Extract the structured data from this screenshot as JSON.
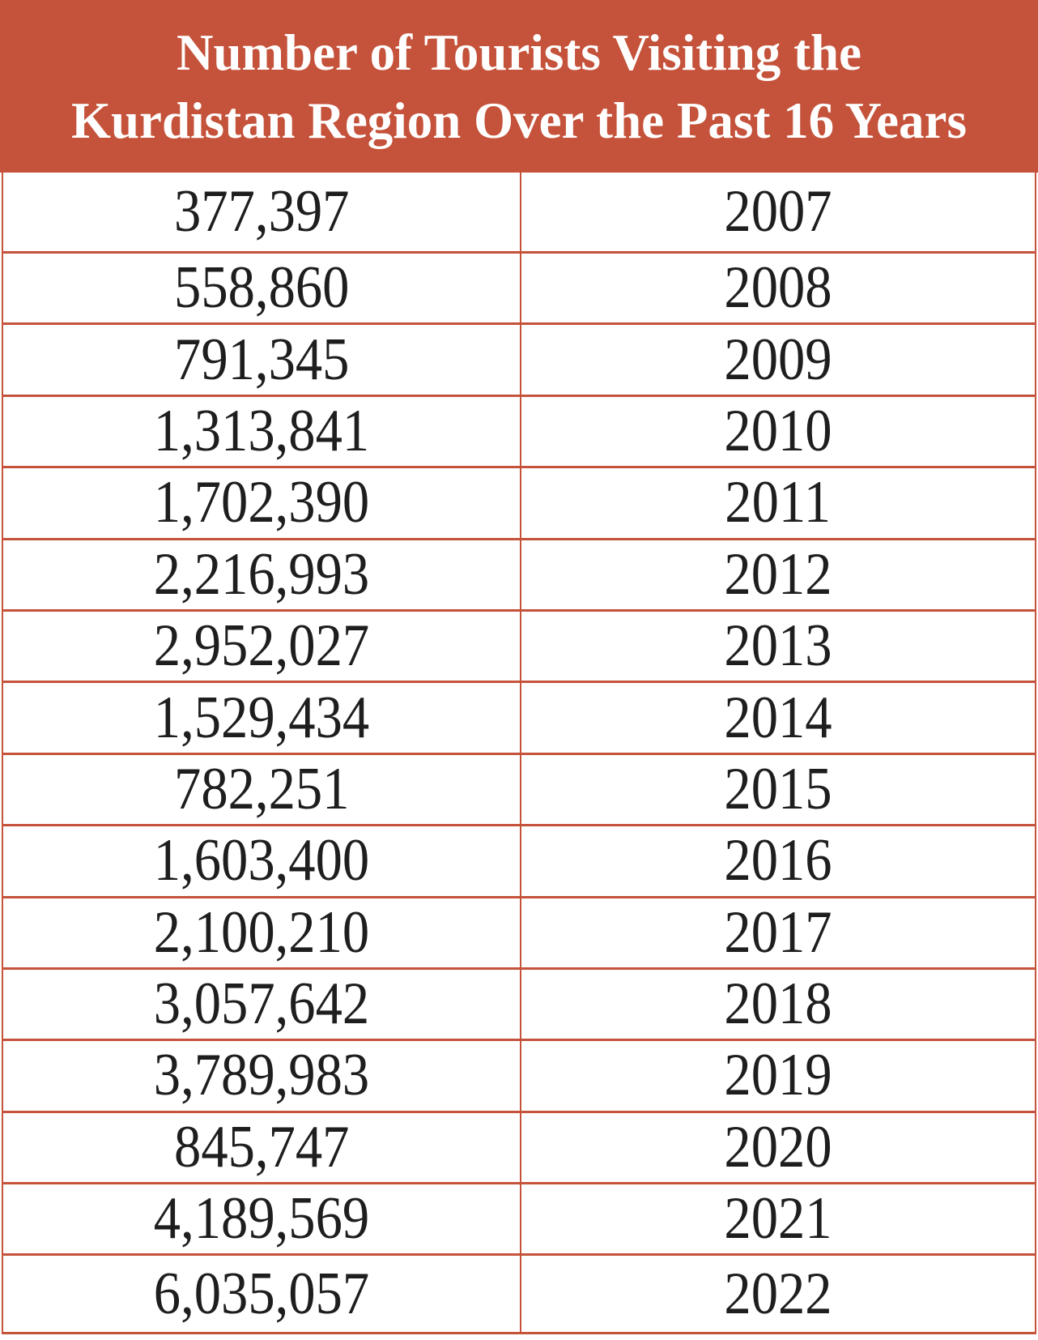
{
  "title": {
    "line1": "Number of Tourists Visiting the",
    "line2": "Kurdistan Region Over the Past 16 Years"
  },
  "colors": {
    "accent": "#c5523a",
    "text": "#1e1e1e"
  },
  "rows": [
    {
      "tourists": "377,397",
      "year": "2007"
    },
    {
      "tourists": "558,860",
      "year": "2008"
    },
    {
      "tourists": "791,345",
      "year": "2009"
    },
    {
      "tourists": "1,313,841",
      "year": "2010"
    },
    {
      "tourists": "1,702,390",
      "year": "2011"
    },
    {
      "tourists": "2,216,993",
      "year": "2012"
    },
    {
      "tourists": "2,952,027",
      "year": "2013"
    },
    {
      "tourists": "1,529,434",
      "year": "2014"
    },
    {
      "tourists": "782,251",
      "year": "2015"
    },
    {
      "tourists": "1,603,400",
      "year": "2016"
    },
    {
      "tourists": "2,100,210",
      "year": "2017"
    },
    {
      "tourists": "3,057,642",
      "year": "2018"
    },
    {
      "tourists": "3,789,983",
      "year": "2019"
    },
    {
      "tourists": "845,747",
      "year": "2020"
    },
    {
      "tourists": "4,189,569",
      "year": "2021"
    },
    {
      "tourists": "6,035,057",
      "year": "2022"
    }
  ]
}
